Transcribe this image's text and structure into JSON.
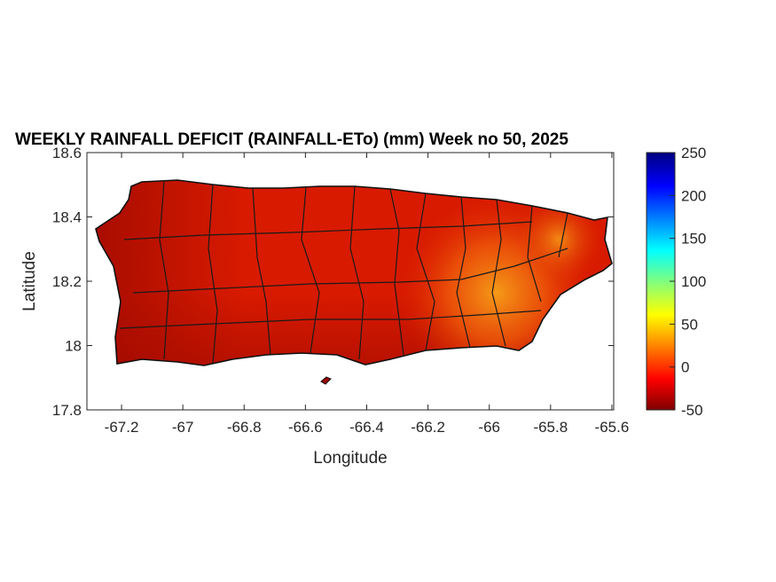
{
  "chart_data": {
    "type": "heatmap",
    "title": "WEEKLY RAINFALL DEFICIT (RAINFALL-ETo) (mm) Week no 50, 2025",
    "xlabel": "Longitude",
    "ylabel": "Latitude",
    "xlim": [
      -67.313,
      -65.594
    ],
    "ylim": [
      17.8,
      18.6
    ],
    "xticks": [
      -67.2,
      -67,
      -66.8,
      -66.6,
      -66.4,
      -66.2,
      -66,
      -65.8,
      -65.6
    ],
    "xtick_labels": [
      "-67.2",
      "-67",
      "-66.8",
      "-66.6",
      "-66.4",
      "-66.2",
      "-66",
      "-65.8",
      "-65.6"
    ],
    "yticks": [
      17.8,
      18,
      18.2,
      18.4,
      18.6
    ],
    "ytick_labels": [
      "17.8",
      "18",
      "18.2",
      "18.4",
      "18.6"
    ],
    "colorbar": {
      "colormap": "jet",
      "clim": [
        -50,
        250
      ],
      "ticks": [
        -50,
        0,
        50,
        100,
        150,
        200,
        250
      ],
      "tick_labels": [
        "-50",
        "0",
        "50",
        "100",
        "150",
        "200",
        "250"
      ]
    },
    "summary": {
      "typical_value_range": [
        -50,
        30
      ],
      "wettest_region": "east-central"
    }
  },
  "colors": {
    "land_base": "#cc1400",
    "land_dry": "#9a0800",
    "land_wet": "#f07a10",
    "border": "#1a1a1a"
  }
}
